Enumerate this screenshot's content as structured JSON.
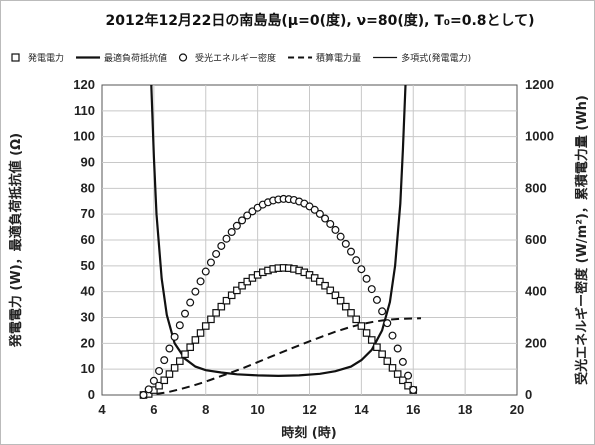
{
  "chart_data": {
    "type": "line",
    "title": "2012年12月22日の南島島(μ=0(度), ν=80(度), T₀=0.8として)",
    "xlabel": "時刻 (時)",
    "ylabel_left": "発電電力 (W)，最適負荷抵抗値 (Ω)",
    "ylabel_right": "受光エネルギー密度 (W/m²)，累積電力量 (Wh)",
    "xlim": [
      4,
      20
    ],
    "ylim_left": [
      0,
      120
    ],
    "ylim_right": [
      0,
      1200
    ],
    "x_ticks": [
      "4",
      "6",
      "8",
      "10",
      "12",
      "14",
      "16",
      "18",
      "20"
    ],
    "y_ticks_left": [
      "0",
      "10",
      "20",
      "30",
      "40",
      "50",
      "60",
      "70",
      "80",
      "90",
      "100",
      "110",
      "120"
    ],
    "y_ticks_right": [
      "0",
      "200",
      "400",
      "600",
      "800",
      "1000",
      "1200"
    ],
    "grid": true,
    "legend_position": "top",
    "legend": [
      {
        "label": "発電電力",
        "style": "square-marker"
      },
      {
        "label": "最適負荷抵抗値",
        "style": "solid-thick"
      },
      {
        "label": "受光エネルギー密度",
        "style": "circle-marker"
      },
      {
        "label": "積算電力量",
        "style": "dashed"
      },
      {
        "label": "多項式(発電電力)",
        "style": "solid-thin"
      }
    ],
    "series": [
      {
        "name": "発電電力",
        "axis": "left",
        "marker": "square",
        "x": [
          5.6,
          5.8,
          6.0,
          6.2,
          6.4,
          6.6,
          6.8,
          7.0,
          7.2,
          7.4,
          7.6,
          7.8,
          8.0,
          8.2,
          8.4,
          8.6,
          8.8,
          9.0,
          9.2,
          9.4,
          9.6,
          9.8,
          10.0,
          10.2,
          10.4,
          10.6,
          10.8,
          11.0,
          11.2,
          11.4,
          11.6,
          11.8,
          12.0,
          12.2,
          12.4,
          12.6,
          12.8,
          13.0,
          13.2,
          13.4,
          13.6,
          13.8,
          14.0,
          14.2,
          14.4,
          14.6,
          14.8,
          15.0,
          15.2,
          15.4,
          15.6,
          15.8,
          16.0
        ],
        "y": [
          0.0,
          0.4,
          1.9,
          3.6,
          5.7,
          8.1,
          10.5,
          13.1,
          15.8,
          18.5,
          21.3,
          24.0,
          26.7,
          29.3,
          31.8,
          34.2,
          36.5,
          38.6,
          40.5,
          42.3,
          43.9,
          45.3,
          46.5,
          47.5,
          48.2,
          48.8,
          49.1,
          49.2,
          49.1,
          48.8,
          48.2,
          47.5,
          46.5,
          45.3,
          43.9,
          42.3,
          40.5,
          38.6,
          36.5,
          34.2,
          31.8,
          29.3,
          26.7,
          24.0,
          21.3,
          18.5,
          15.8,
          13.1,
          10.5,
          8.1,
          5.7,
          3.6,
          1.9
        ]
      },
      {
        "name": "受光エネルギー密度",
        "axis": "right",
        "marker": "circle",
        "x": [
          5.6,
          5.8,
          6.0,
          6.2,
          6.4,
          6.6,
          6.8,
          7.0,
          7.2,
          7.4,
          7.6,
          7.8,
          8.0,
          8.2,
          8.4,
          8.6,
          8.8,
          9.0,
          9.2,
          9.4,
          9.6,
          9.8,
          10.0,
          10.2,
          10.4,
          10.6,
          10.8,
          11.0,
          11.2,
          11.4,
          11.6,
          11.8,
          12.0,
          12.2,
          12.4,
          12.6,
          12.8,
          13.0,
          13.2,
          13.4,
          13.6,
          13.8,
          14.0,
          14.2,
          14.4,
          14.6,
          14.8,
          15.0,
          15.2,
          15.4,
          15.6,
          15.8,
          16.0
        ],
        "y": [
          0,
          22,
          55,
          93,
          135,
          180,
          225,
          270,
          315,
          358,
          400,
          440,
          478,
          513,
          546,
          577,
          605,
          631,
          655,
          676,
          695,
          711,
          725,
          737,
          746,
          753,
          757,
          759,
          758,
          755,
          749,
          741,
          730,
          717,
          701,
          683,
          662,
          639,
          613,
          585,
          555,
          522,
          487,
          450,
          410,
          368,
          324,
          278,
          230,
          180,
          128,
          75,
          20
        ]
      },
      {
        "name": "最適負荷抵抗値",
        "axis": "left",
        "line": "solid-thick",
        "x": [
          5.9,
          6.0,
          6.1,
          6.3,
          6.5,
          6.8,
          7.2,
          7.6,
          8.0,
          8.6,
          9.2,
          10.0,
          10.8,
          11.6,
          12.4,
          13.0,
          13.6,
          14.0,
          14.4,
          14.8,
          15.1,
          15.3,
          15.5,
          15.6,
          15.7
        ],
        "y": [
          120.0,
          92.0,
          70.0,
          45.0,
          31.0,
          20.0,
          14.0,
          11.0,
          9.6,
          8.7,
          8.0,
          7.6,
          7.4,
          7.6,
          8.2,
          9.2,
          11.0,
          13.5,
          17.5,
          25.0,
          36.0,
          50.0,
          74.0,
          95.0,
          120.0
        ]
      },
      {
        "name": "積算電力量",
        "axis": "right",
        "line": "dashed",
        "x": [
          5.6,
          6.0,
          6.5,
          7.0,
          7.5,
          8.0,
          8.5,
          9.0,
          9.5,
          10.0,
          10.5,
          11.0,
          11.5,
          12.0,
          12.5,
          13.0,
          13.5,
          14.0,
          14.5,
          15.0,
          15.5,
          16.0,
          16.3
        ],
        "y": [
          0,
          3,
          10,
          22,
          36,
          52,
          70,
          88,
          107,
          127,
          148,
          168,
          188,
          208,
          227,
          245,
          261,
          274,
          284,
          291,
          295,
          296,
          297
        ]
      },
      {
        "name": "多項式(発電電力)",
        "axis": "left",
        "line": "solid-thin",
        "x": [
          5.6,
          6.0,
          6.5,
          7.0,
          7.5,
          8.0,
          8.5,
          9.0,
          9.5,
          10.0,
          10.5,
          11.0,
          11.5,
          12.0,
          12.5,
          13.0,
          13.5,
          14.0,
          14.5,
          15.0,
          15.5,
          16.0
        ],
        "y": [
          0.0,
          1.9,
          6.9,
          13.1,
          19.8,
          26.7,
          33.0,
          38.6,
          43.1,
          46.5,
          48.5,
          49.2,
          48.5,
          46.5,
          43.1,
          38.6,
          33.0,
          26.7,
          19.8,
          13.1,
          6.9,
          1.9
        ]
      }
    ]
  }
}
